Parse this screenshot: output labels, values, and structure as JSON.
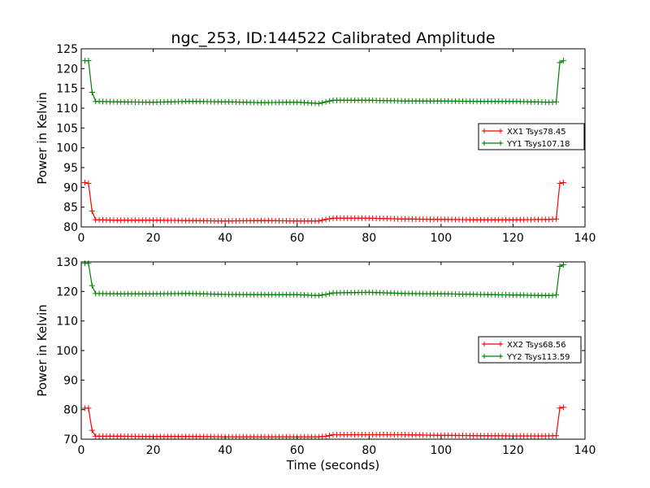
{
  "chart_data": {
    "type": "line",
    "title": "ngc_253, ID:144522 Calibrated Amplitude",
    "xlabel": "Time (seconds)",
    "subplots": [
      {
        "id": "top",
        "ylabel": "Power in Kelvin",
        "xlim": [
          0,
          140
        ],
        "ylim": [
          80,
          125
        ],
        "xticks": [
          0,
          20,
          40,
          60,
          80,
          100,
          120,
          140
        ],
        "yticks": [
          80,
          85,
          90,
          95,
          100,
          105,
          110,
          115,
          120,
          125
        ],
        "legend_position": "right",
        "series": [
          {
            "name": "XX1 Tsys78.45",
            "color": "#ff0000",
            "marker": "+",
            "x": [
              1,
              2,
              3,
              4,
              10,
              20,
              30,
              40,
              50,
              60,
              66,
              68,
              70,
              80,
              90,
              100,
              110,
              120,
              130,
              132,
              133,
              134
            ],
            "values": [
              91.2,
              91.0,
              84.0,
              81.8,
              81.7,
              81.7,
              81.6,
              81.5,
              81.6,
              81.5,
              81.5,
              81.9,
              82.2,
              82.2,
              82.0,
              81.9,
              81.8,
              81.8,
              81.9,
              82.0,
              91.0,
              91.2
            ]
          },
          {
            "name": "YY1 Tsys107.18",
            "color": "#008000",
            "marker": "+",
            "x": [
              1,
              2,
              3,
              4,
              10,
              20,
              30,
              40,
              50,
              60,
              66,
              68,
              70,
              80,
              90,
              100,
              110,
              120,
              130,
              132,
              133,
              134
            ],
            "values": [
              122.0,
              122.0,
              114.0,
              111.7,
              111.6,
              111.5,
              111.7,
              111.6,
              111.4,
              111.5,
              111.2,
              111.6,
              112.0,
              112.0,
              111.8,
              111.8,
              111.7,
              111.7,
              111.5,
              111.6,
              121.5,
              122.0
            ]
          }
        ]
      },
      {
        "id": "bottom",
        "ylabel": "Power in Kelvin",
        "xlim": [
          0,
          140
        ],
        "ylim": [
          70,
          130
        ],
        "xticks": [
          0,
          20,
          40,
          60,
          80,
          100,
          120,
          140
        ],
        "yticks": [
          70,
          80,
          90,
          100,
          110,
          120,
          130
        ],
        "legend_position": "right",
        "series": [
          {
            "name": "XX2 Tsys68.56",
            "color": "#ff0000",
            "marker": "+",
            "x": [
              1,
              2,
              3,
              4,
              10,
              20,
              30,
              40,
              50,
              60,
              66,
              68,
              70,
              80,
              90,
              100,
              110,
              120,
              130,
              132,
              133,
              134
            ],
            "values": [
              80.5,
              80.5,
              73.0,
              71.0,
              71.0,
              70.9,
              70.9,
              70.8,
              70.8,
              70.8,
              70.8,
              71.0,
              71.5,
              71.5,
              71.5,
              71.3,
              71.2,
              71.1,
              71.1,
              71.2,
              80.5,
              80.8
            ]
          },
          {
            "name": "YY2 Tsys113.59",
            "color": "#008000",
            "marker": "+",
            "x": [
              1,
              2,
              3,
              4,
              10,
              20,
              30,
              40,
              50,
              60,
              66,
              68,
              70,
              80,
              90,
              100,
              110,
              120,
              130,
              132,
              133,
              134
            ],
            "values": [
              129.5,
              129.5,
              122.0,
              119.3,
              119.2,
              119.2,
              119.3,
              119.0,
              118.9,
              118.9,
              118.6,
              119.0,
              119.5,
              119.7,
              119.3,
              119.2,
              119.0,
              118.8,
              118.6,
              118.8,
              128.5,
              129.0
            ]
          }
        ]
      }
    ]
  }
}
